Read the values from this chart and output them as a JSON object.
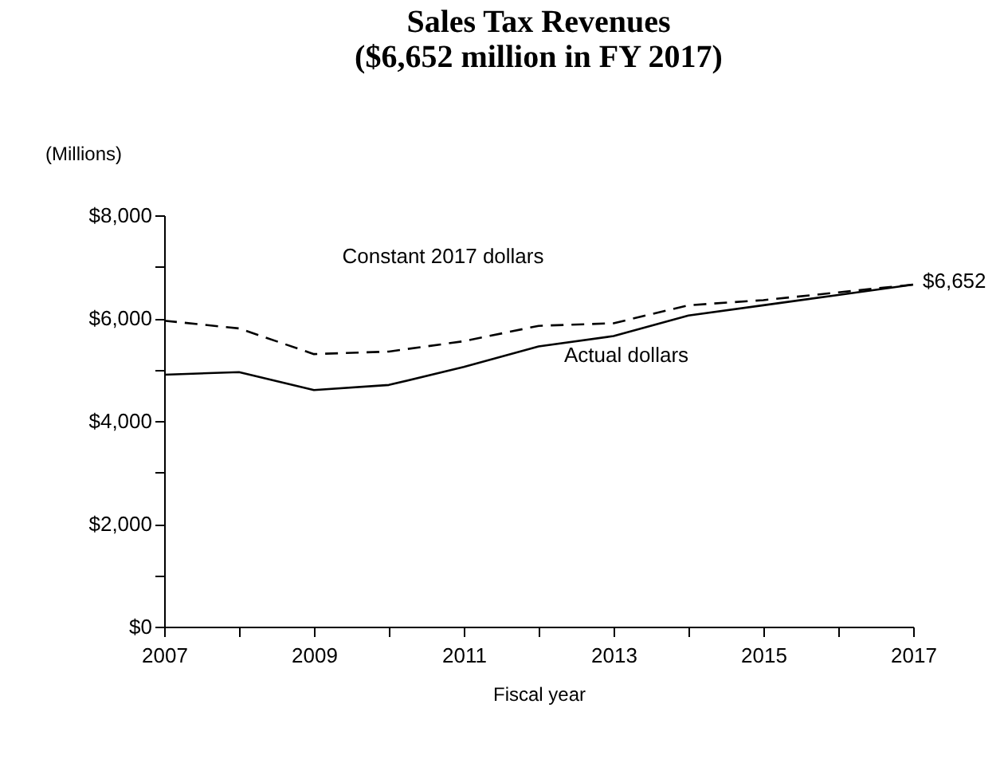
{
  "chart_data": {
    "type": "line",
    "title": "Sales Tax Revenues",
    "subtitle": "($6,652 million in FY 2017)",
    "xlabel": "Fiscal year",
    "ylabel": "(Millions)",
    "x": [
      2007,
      2008,
      2009,
      2010,
      2011,
      2012,
      2013,
      2014,
      2015,
      2016,
      2017
    ],
    "series": [
      {
        "name": "Constant 2017 dollars",
        "color": "#000000",
        "line_style": "dashed",
        "values": [
          5950,
          5800,
          5300,
          5350,
          5550,
          5850,
          5900,
          6250,
          6350,
          6500,
          6652
        ]
      },
      {
        "name": "Actual dollars",
        "color": "#000000",
        "line_style": "solid",
        "values": [
          4900,
          4950,
          4600,
          4700,
          5050,
          5450,
          5650,
          6050,
          6250,
          6450,
          6652
        ]
      }
    ],
    "xlim": [
      2007,
      2017
    ],
    "xticks": [
      2007,
      {
        "value": 2008,
        "label": null
      },
      2009,
      {
        "value": 2010,
        "label": null
      },
      2011,
      {
        "value": 2012,
        "label": null
      },
      2013,
      {
        "value": 2014,
        "label": null
      },
      2015,
      {
        "value": 2016,
        "label": null
      },
      2017
    ],
    "ylim": [
      0,
      8000
    ],
    "yticks": [
      {
        "value": 0,
        "label": "$0"
      },
      {
        "value": 1000,
        "label": null
      },
      {
        "value": 2000,
        "label": "$2,000"
      },
      {
        "value": 3000,
        "label": null
      },
      {
        "value": 4000,
        "label": "$4,000"
      },
      {
        "value": 5000,
        "label": null
      },
      {
        "value": 6000,
        "label": "$6,000"
      },
      {
        "value": 7000,
        "label": null
      },
      {
        "value": 8000,
        "label": "$8,000"
      }
    ],
    "annotations": [
      {
        "text": "$6,652",
        "x": 2017,
        "y": 6652
      }
    ],
    "grid": false,
    "legend": false,
    "marker": "none"
  }
}
